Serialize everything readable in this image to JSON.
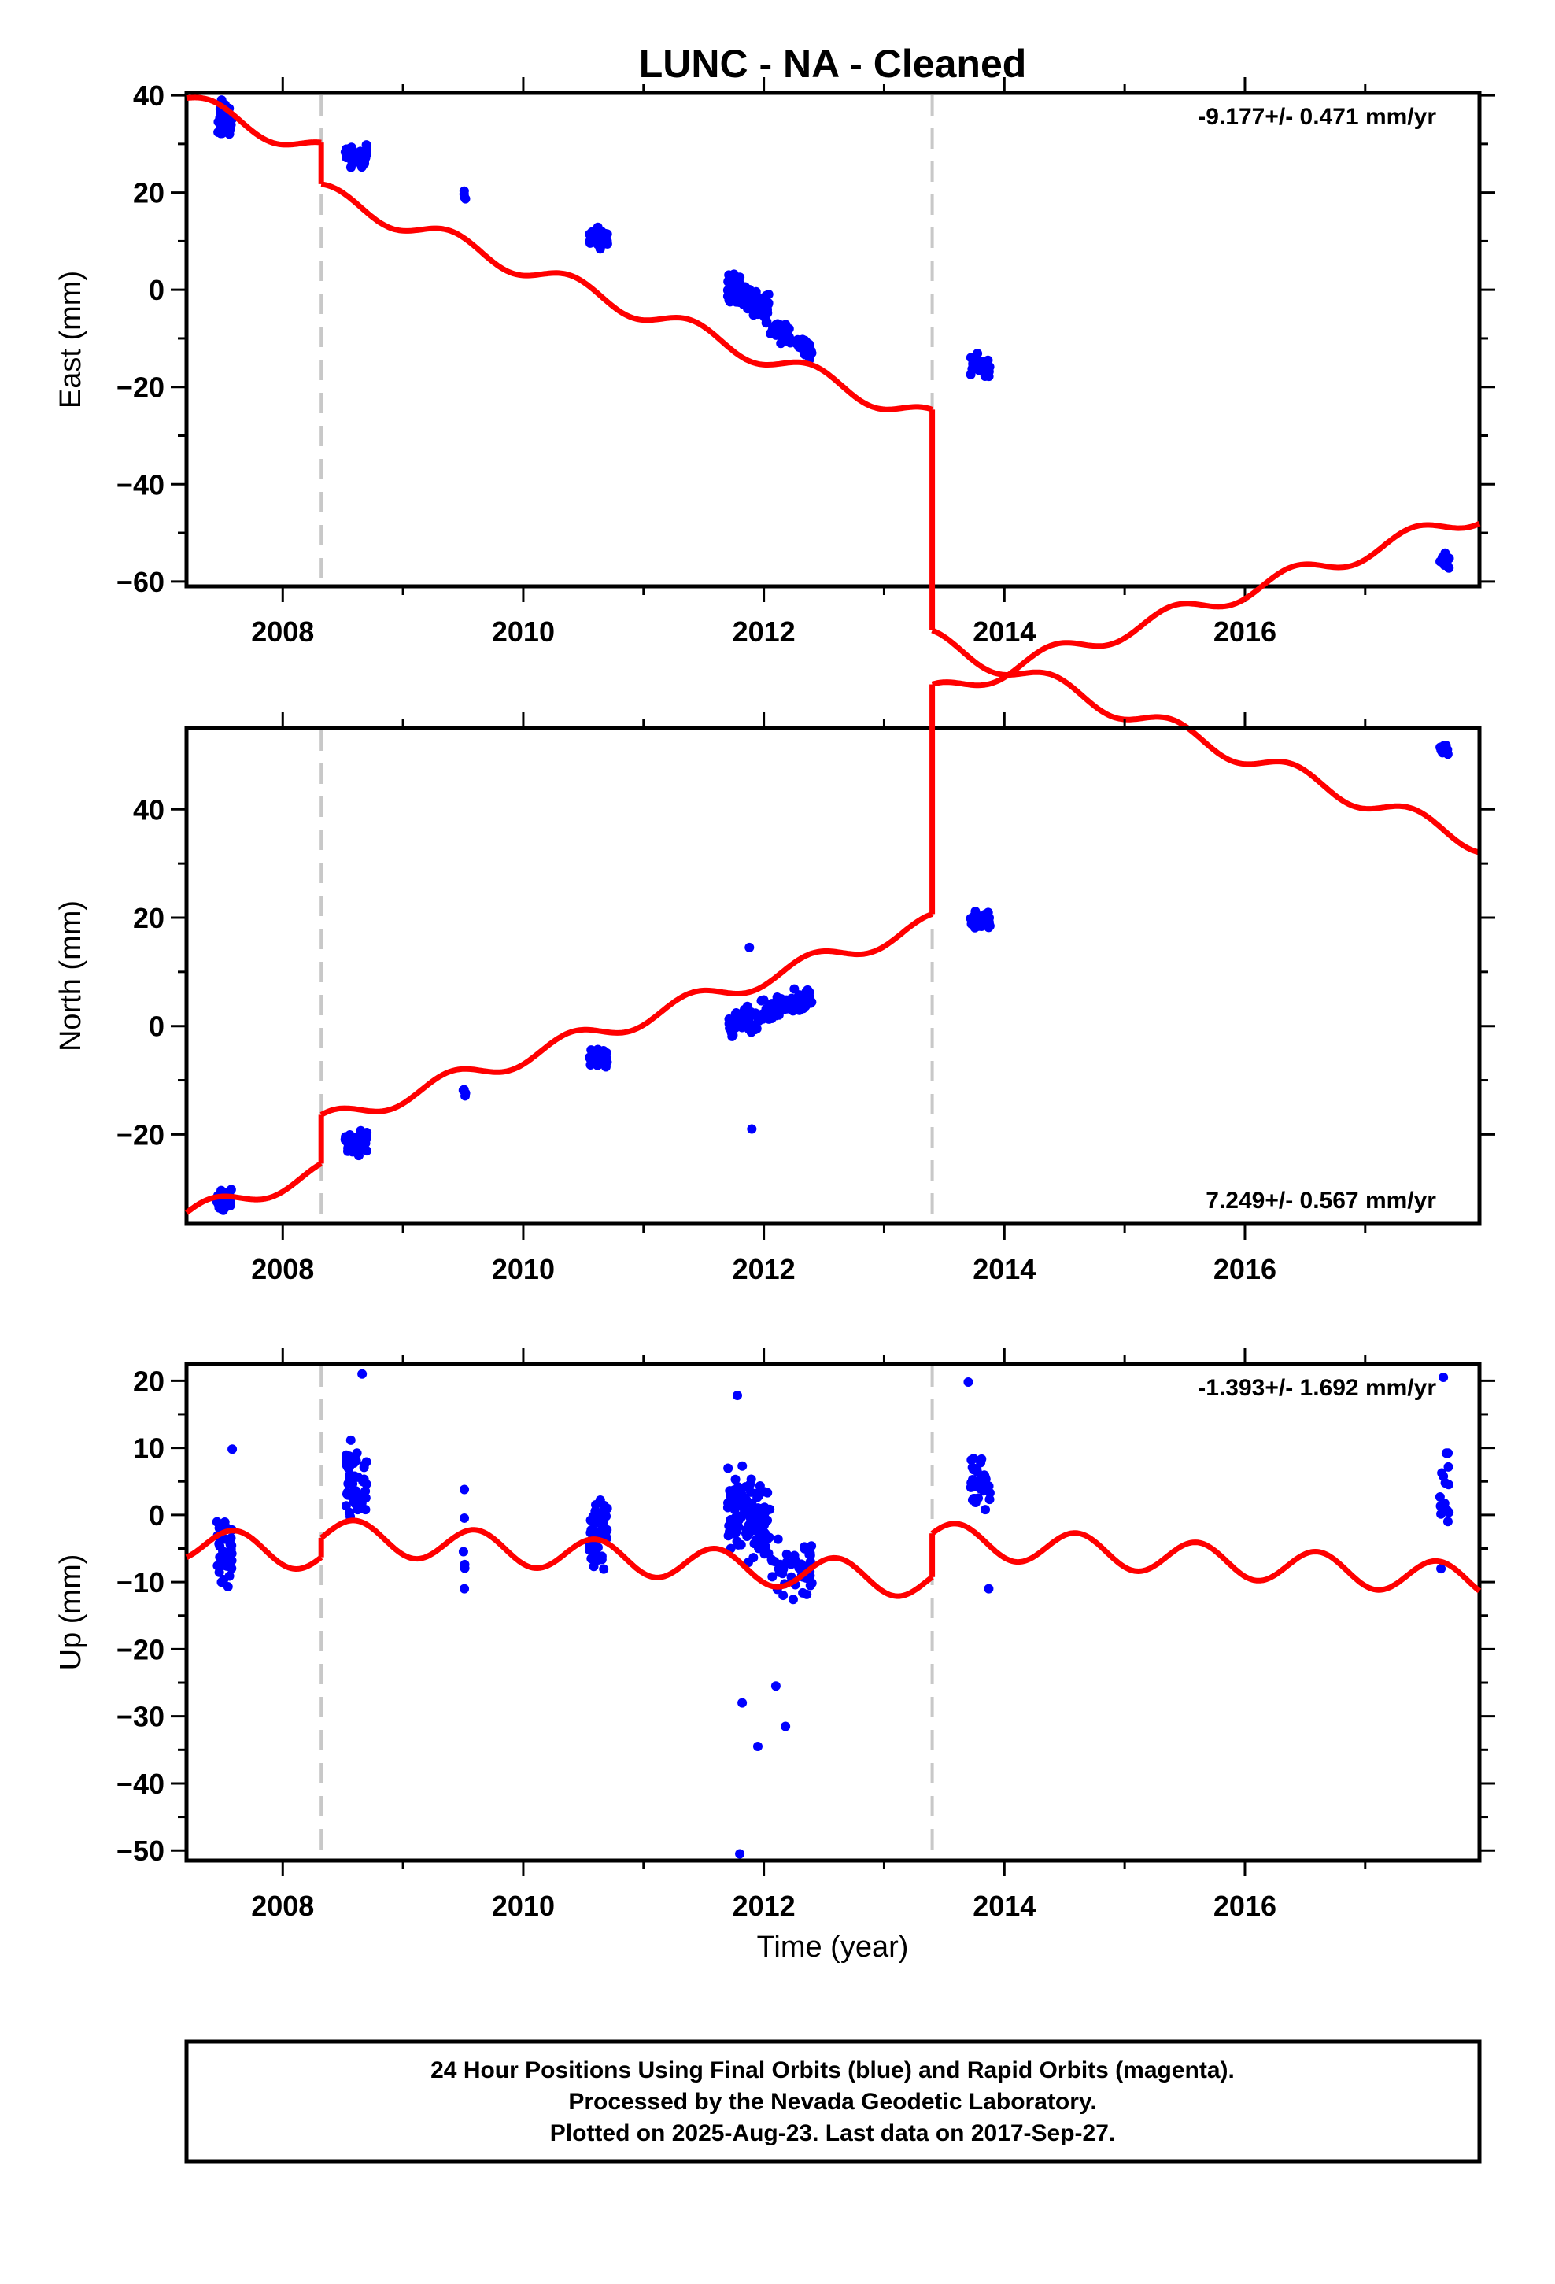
{
  "chart_data": {
    "type": "scatter",
    "title": "LUNC  - NA - Cleaned",
    "xlabel": "Time (year)",
    "xlim": [
      2007.2,
      2017.95
    ],
    "x_ticks": [
      "2008",
      "2010",
      "2012",
      "2014",
      "2016"
    ],
    "x_tick_values": [
      2008,
      2010,
      2012,
      2014,
      2016
    ],
    "breaks": [
      2008.32,
      2013.4
    ],
    "colors": {
      "points": "#0000ff",
      "model": "#ff0000",
      "breaks": "#c8c8c8"
    },
    "panels": [
      {
        "name": "east",
        "ylabel": "East (mm)",
        "ylim": [
          -61,
          40.5
        ],
        "y_ticks": [
          "40",
          "20",
          "0",
          "−20",
          "−40",
          "−60"
        ],
        "y_tick_values": [
          40,
          20,
          0,
          -20,
          -40,
          -60
        ],
        "rate_text": "-9.177+/- 0.471 mm/yr",
        "rate_position": "top-right",
        "model": {
          "segments": [
            [
              2007.2,
              2008.32
            ],
            [
              2008.32,
              2013.4
            ],
            [
              2013.4,
              2017.95
            ]
          ],
          "offsets": [
            36.06,
            27.51,
            -17.92
          ],
          "rate": -9.177,
          "seasonal_amp": 2.0,
          "seasonal_phase": 0.15,
          "ref_year": 2007.5
        },
        "clusters": [
          {
            "x0": 2007.45,
            "x1": 2007.58,
            "n": 40,
            "y0": 35.0,
            "slope": 0,
            "spread": 3.5
          },
          {
            "x0": 2008.52,
            "x1": 2008.7,
            "n": 45,
            "y0": 27.5,
            "slope": 0,
            "spread": 2.0
          },
          {
            "x0": 2009.5,
            "x1": 2009.52,
            "n": 4,
            "y0": 19.0,
            "slope": 0,
            "spread": 1.2
          },
          {
            "x0": 2010.55,
            "x1": 2010.7,
            "n": 45,
            "y0": 10.5,
            "slope": 0,
            "spread": 2.0
          },
          {
            "x0": 2011.7,
            "x1": 2012.05,
            "n": 110,
            "y0": 1.0,
            "slope": -5,
            "spread": 2.8
          },
          {
            "x0": 2012.05,
            "x1": 2012.4,
            "n": 45,
            "y0": -7.0,
            "slope": -6,
            "spread": 2.5
          },
          {
            "x0": 2013.72,
            "x1": 2013.88,
            "n": 40,
            "y0": -15.5,
            "slope": 0,
            "spread": 1.8
          },
          {
            "x0": 2017.62,
            "x1": 2017.7,
            "n": 14,
            "y0": -55.5,
            "slope": 0,
            "spread": 2.2
          }
        ]
      },
      {
        "name": "north",
        "ylabel": "North (mm)",
        "ylim": [
          -36.5,
          55
        ],
        "y_ticks": [
          "40",
          "20",
          "0",
          "−20"
        ],
        "y_tick_values": [
          40,
          20,
          0,
          -20
        ],
        "rate_text": "7.249+/- 0.567 mm/yr",
        "rate_position": "bottom-right",
        "model": {
          "segments": [
            [
              2007.2,
              2008.32
            ],
            [
              2008.32,
              2013.4
            ],
            [
              2013.4,
              2017.95
            ]
          ],
          "offsets": [
            -32.8,
            -23.8,
            18.6
          ],
          "rate": 7.249,
          "seasonal_amp": 1.7,
          "seasonal_phase": 0.15,
          "ref_year": 2007.5
        },
        "clusters": [
          {
            "x0": 2007.45,
            "x1": 2007.58,
            "n": 40,
            "y0": -32.0,
            "slope": 0,
            "spread": 2.0
          },
          {
            "x0": 2008.52,
            "x1": 2008.7,
            "n": 45,
            "y0": -21.5,
            "slope": 0,
            "spread": 2.2
          },
          {
            "x0": 2009.5,
            "x1": 2009.52,
            "n": 4,
            "y0": -12.0,
            "slope": 0,
            "spread": 1.0
          },
          {
            "x0": 2010.55,
            "x1": 2010.7,
            "n": 45,
            "y0": -6.0,
            "slope": 0,
            "spread": 1.5
          },
          {
            "x0": 2011.7,
            "x1": 2012.4,
            "n": 150,
            "y0": -0.5,
            "slope": 6,
            "spread": 2.2
          },
          {
            "x0": 2013.72,
            "x1": 2013.88,
            "n": 40,
            "y0": 19.5,
            "slope": 0,
            "spread": 1.5
          },
          {
            "x0": 2017.62,
            "x1": 2017.7,
            "n": 14,
            "y0": 51.0,
            "slope": 0,
            "spread": 1.2
          }
        ],
        "points": [
          [
            2011.88,
            14.5
          ],
          [
            2011.9,
            -19.0
          ]
        ]
      },
      {
        "name": "up",
        "ylabel": "Up (mm)",
        "ylim": [
          -51.5,
          22.5
        ],
        "y_ticks": [
          "20",
          "10",
          "0",
          "−10",
          "−20",
          "−30",
          "−40",
          "−50"
        ],
        "y_tick_values": [
          20,
          10,
          0,
          -10,
          -20,
          -30,
          -40,
          -50
        ],
        "rate_text": "-1.393+/- 1.692 mm/yr",
        "rate_position": "top-right",
        "model": {
          "segments": [
            [
              2007.2,
              2008.32
            ],
            [
              2008.32,
              2013.4
            ],
            [
              2013.4,
              2017.95
            ]
          ],
          "offsets": [
            -4.7,
            -1.8,
            4.7
          ],
          "rate": -1.393,
          "seasonal_amp": 2.5,
          "seasonal_phase": 0.35,
          "ref_year": 2007.5
        },
        "clusters": [
          {
            "x0": 2007.45,
            "x1": 2007.58,
            "n": 40,
            "y0": -6.0,
            "slope": 0,
            "spread": 4.0
          },
          {
            "x0": 2008.52,
            "x1": 2008.7,
            "n": 50,
            "y0": 5.0,
            "slope": 0,
            "spread": 5.5
          },
          {
            "x0": 2009.5,
            "x1": 2009.52,
            "n": 4,
            "y0": -4.0,
            "slope": 0,
            "spread": 4.0
          },
          {
            "x0": 2010.55,
            "x1": 2010.7,
            "n": 45,
            "y0": -3.0,
            "slope": 0,
            "spread": 5.0
          },
          {
            "x0": 2011.7,
            "x1": 2012.05,
            "n": 120,
            "y0": 1.5,
            "slope": -3,
            "spread": 6.0
          },
          {
            "x0": 2012.05,
            "x1": 2012.4,
            "n": 50,
            "y0": -8.0,
            "slope": 0,
            "spread": 4.5
          },
          {
            "x0": 2013.72,
            "x1": 2013.88,
            "n": 40,
            "y0": 5.0,
            "slope": 0,
            "spread": 4.0
          },
          {
            "x0": 2017.62,
            "x1": 2017.7,
            "n": 14,
            "y0": 4.0,
            "slope": 0,
            "spread": 7.0
          }
        ],
        "points": [
          [
            2011.82,
            -28.0
          ],
          [
            2011.95,
            -34.5
          ],
          [
            2012.1,
            -25.5
          ],
          [
            2012.18,
            -31.5
          ],
          [
            2011.8,
            -50.5
          ],
          [
            2011.78,
            17.8
          ],
          [
            2008.66,
            21.0
          ],
          [
            2013.7,
            19.8
          ],
          [
            2007.58,
            9.8
          ],
          [
            2009.51,
            3.8
          ],
          [
            2009.51,
            -11.0
          ],
          [
            2013.87,
            -11.0
          ],
          [
            2017.65,
            20.5
          ],
          [
            2017.63,
            -8.0
          ]
        ]
      }
    ]
  },
  "footer": {
    "line1": "24 Hour Positions Using Final Orbits (blue) and Rapid Orbits (magenta).",
    "line2": "Processed by the Nevada Geodetic Laboratory.",
    "line3": "Plotted on 2025-Aug-23. Last data on 2017-Sep-27."
  }
}
